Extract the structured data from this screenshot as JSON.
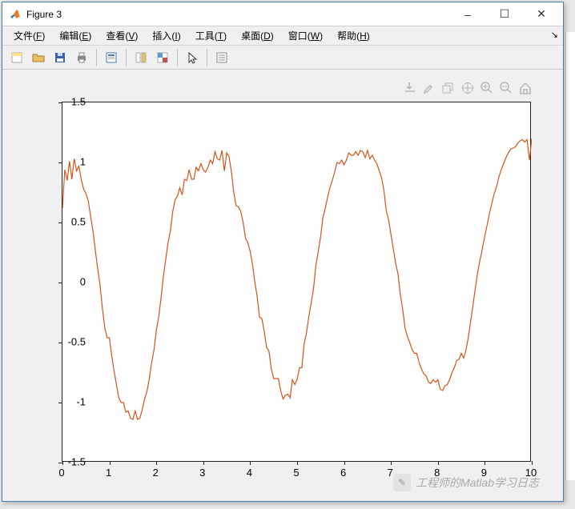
{
  "window": {
    "title": "Figure 3",
    "controls": {
      "min": "–",
      "max": "☐",
      "close": "✕"
    }
  },
  "menu": {
    "items": [
      {
        "label": "文件",
        "key": "F"
      },
      {
        "label": "编辑",
        "key": "E"
      },
      {
        "label": "查看",
        "key": "V"
      },
      {
        "label": "插入",
        "key": "I"
      },
      {
        "label": "工具",
        "key": "T"
      },
      {
        "label": "桌面",
        "key": "D"
      },
      {
        "label": "窗口",
        "key": "W"
      },
      {
        "label": "帮助",
        "key": "H"
      }
    ]
  },
  "toolbar": {
    "groups": [
      [
        "new-figure",
        "open",
        "save",
        "print"
      ],
      [
        "print-preview"
      ],
      [
        "link",
        "data-cursor"
      ],
      [
        "pointer"
      ],
      [
        "properties"
      ]
    ],
    "icon_colors": {
      "new-figure": "#ffe28a",
      "open": "#e8c060",
      "save": "#3a5fb5",
      "print": "#888",
      "print-preview": "#4a7bb5",
      "link": "#e8c060",
      "data-cursor": "#c05050",
      "pointer": "#333",
      "properties": "#888"
    }
  },
  "axes_toolbar": {
    "items": [
      "export",
      "brush",
      "restore",
      "pan",
      "zoom-in",
      "zoom-out",
      "home"
    ]
  },
  "chart": {
    "type": "line",
    "background_color": "#ffffff",
    "axes_border_color": "#222222",
    "line_color": "#d95319",
    "line_width": 1.2,
    "xlim": [
      0,
      10
    ],
    "ylim": [
      -1.5,
      1.5
    ],
    "xtick_step": 1,
    "ytick_step": 0.5,
    "tick_fontsize": 13,
    "tick_color": "#000000",
    "x": [
      0.0,
      0.05,
      0.1,
      0.15,
      0.2,
      0.25,
      0.3,
      0.35,
      0.4,
      0.45,
      0.5,
      0.55,
      0.6,
      0.65,
      0.7,
      0.75,
      0.8,
      0.85,
      0.9,
      0.95,
      1.0,
      1.05,
      1.1,
      1.15,
      1.2,
      1.25,
      1.3,
      1.35,
      1.4,
      1.45,
      1.5,
      1.55,
      1.6,
      1.65,
      1.7,
      1.75,
      1.8,
      1.85,
      1.9,
      1.95,
      2.0,
      2.05,
      2.1,
      2.15,
      2.2,
      2.25,
      2.3,
      2.35,
      2.4,
      2.45,
      2.5,
      2.55,
      2.6,
      2.65,
      2.7,
      2.75,
      2.8,
      2.85,
      2.9,
      2.95,
      3.0,
      3.05,
      3.1,
      3.15,
      3.2,
      3.25,
      3.3,
      3.35,
      3.4,
      3.45,
      3.5,
      3.55,
      3.6,
      3.65,
      3.7,
      3.75,
      3.8,
      3.85,
      3.9,
      3.95,
      4.0,
      4.05,
      4.1,
      4.15,
      4.2,
      4.25,
      4.3,
      4.35,
      4.4,
      4.45,
      4.5,
      4.55,
      4.6,
      4.65,
      4.7,
      4.75,
      4.8,
      4.85,
      4.9,
      4.95,
      5.0,
      5.05,
      5.1,
      5.15,
      5.2,
      5.25,
      5.3,
      5.35,
      5.4,
      5.45,
      5.5,
      5.55,
      5.6,
      5.65,
      5.7,
      5.75,
      5.8,
      5.85,
      5.9,
      5.95,
      6.0,
      6.05,
      6.1,
      6.15,
      6.2,
      6.25,
      6.3,
      6.35,
      6.4,
      6.45,
      6.5,
      6.55,
      6.6,
      6.65,
      6.7,
      6.75,
      6.8,
      6.85,
      6.9,
      6.95,
      7.0,
      7.05,
      7.1,
      7.15,
      7.2,
      7.25,
      7.3,
      7.35,
      7.4,
      7.45,
      7.5,
      7.55,
      7.6,
      7.65,
      7.7,
      7.75,
      7.8,
      7.85,
      7.9,
      7.95,
      8.0,
      8.05,
      8.1,
      8.15,
      8.2,
      8.25,
      8.3,
      8.35,
      8.4,
      8.45,
      8.5,
      8.55,
      8.6,
      8.65,
      8.7,
      8.75,
      8.8,
      8.85,
      8.9,
      8.95,
      9.0,
      9.05,
      9.1,
      9.15,
      9.2,
      9.25,
      9.3,
      9.35,
      9.4,
      9.45,
      9.5,
      9.55,
      9.6,
      9.65,
      9.7,
      9.75,
      9.8,
      9.85,
      9.9,
      9.95,
      10.0
    ],
    "y": [
      0.62,
      0.94,
      0.85,
      1.01,
      0.86,
      1.03,
      0.93,
      0.97,
      0.86,
      0.78,
      0.74,
      0.68,
      0.55,
      0.43,
      0.27,
      0.12,
      -0.02,
      -0.21,
      -0.37,
      -0.46,
      -0.46,
      -0.61,
      -0.74,
      -0.85,
      -0.96,
      -1.0,
      -1.0,
      -1.08,
      -1.07,
      -1.13,
      -1.14,
      -1.07,
      -1.14,
      -1.13,
      -1.06,
      -0.97,
      -0.91,
      -0.8,
      -0.67,
      -0.56,
      -0.4,
      -0.29,
      -0.13,
      0.05,
      0.19,
      0.33,
      0.43,
      0.59,
      0.69,
      0.72,
      0.79,
      0.73,
      0.86,
      0.85,
      0.94,
      0.86,
      0.86,
      0.96,
      0.93,
      0.99,
      0.94,
      0.92,
      0.96,
      1.02,
      0.99,
      1.09,
      1.03,
      1.02,
      1.1,
      0.93,
      1.08,
      1.05,
      0.92,
      0.75,
      0.64,
      0.63,
      0.59,
      0.5,
      0.37,
      0.33,
      0.26,
      0.15,
      0.0,
      -0.12,
      -0.29,
      -0.3,
      -0.41,
      -0.54,
      -0.57,
      -0.72,
      -0.8,
      -0.8,
      -0.8,
      -0.9,
      -0.97,
      -0.94,
      -0.93,
      -0.96,
      -0.81,
      -0.85,
      -0.81,
      -0.71,
      -0.71,
      -0.51,
      -0.42,
      -0.28,
      -0.17,
      -0.05,
      0.14,
      0.26,
      0.38,
      0.54,
      0.62,
      0.71,
      0.79,
      0.85,
      0.92,
      1.0,
      0.99,
      1.02,
      0.98,
      1.02,
      1.08,
      1.06,
      1.06,
      1.09,
      1.06,
      1.1,
      1.09,
      1.04,
      1.1,
      1.03,
      1.06,
      1.02,
      0.99,
      0.93,
      0.87,
      0.77,
      0.6,
      0.52,
      0.4,
      0.28,
      0.16,
      0.07,
      -0.1,
      -0.22,
      -0.38,
      -0.45,
      -0.5,
      -0.56,
      -0.59,
      -0.59,
      -0.67,
      -0.72,
      -0.76,
      -0.78,
      -0.83,
      -0.84,
      -0.81,
      -0.83,
      -0.81,
      -0.89,
      -0.9,
      -0.86,
      -0.85,
      -0.81,
      -0.75,
      -0.71,
      -0.65,
      -0.64,
      -0.59,
      -0.63,
      -0.56,
      -0.45,
      -0.32,
      -0.18,
      -0.04,
      0.09,
      0.19,
      0.29,
      0.39,
      0.48,
      0.58,
      0.66,
      0.74,
      0.8,
      0.88,
      0.94,
      0.99,
      1.04,
      1.08,
      1.11,
      1.12,
      1.13,
      1.16,
      1.18,
      1.19,
      1.17,
      1.19,
      1.02,
      1.2
    ]
  },
  "watermark": {
    "text": "工程师的Matlab学习日志"
  }
}
